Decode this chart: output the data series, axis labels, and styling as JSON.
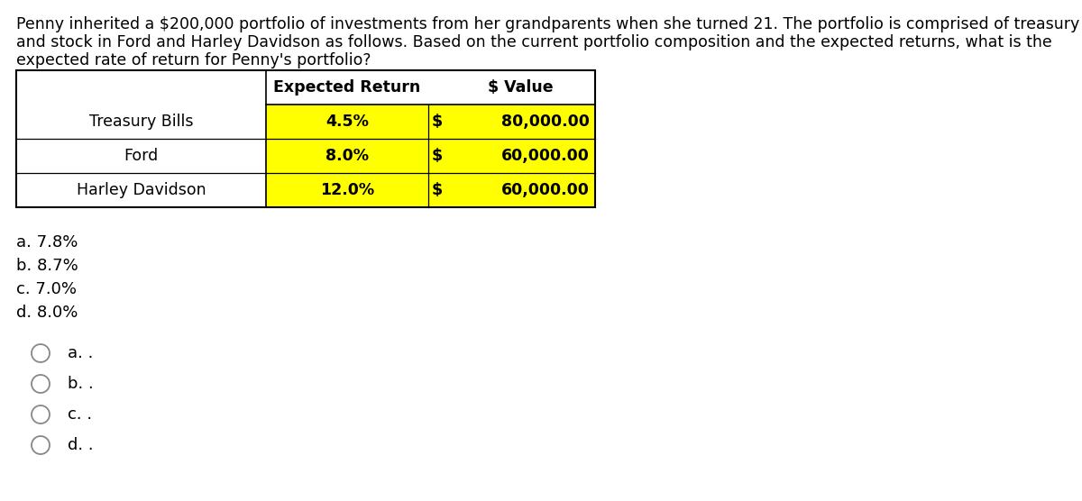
{
  "paragraph_lines": [
    "Penny inherited a $200,000 portfolio of investments from her grandparents when she turned 21. The portfolio is comprised of treasury bills",
    "and stock in Ford and Harley Davidson as follows. Based on the current portfolio composition and the expected returns, what is the",
    "expected rate of return for Penny's portfolio?"
  ],
  "table": {
    "rows": [
      {
        "name": "Treasury Bills",
        "expected_return": "4.5%",
        "dollar": "$",
        "value": "80,000.00"
      },
      {
        "name": "Ford",
        "expected_return": "8.0%",
        "dollar": "$",
        "value": "60,000.00"
      },
      {
        "name": "Harley Davidson",
        "expected_return": "12.0%",
        "dollar": "$",
        "value": "60,000.00"
      }
    ],
    "data_row_bg": "#ffff00",
    "border_color": "#000000",
    "header_bg": "#ffffff"
  },
  "choices": [
    "a. 7.8%",
    "b. 8.7%",
    "c. 7.0%",
    "d. 8.0%"
  ],
  "radio_labels": [
    "a. .",
    "b. .",
    "c. .",
    "d. ."
  ],
  "background_color": "#ffffff",
  "text_color": "#000000"
}
